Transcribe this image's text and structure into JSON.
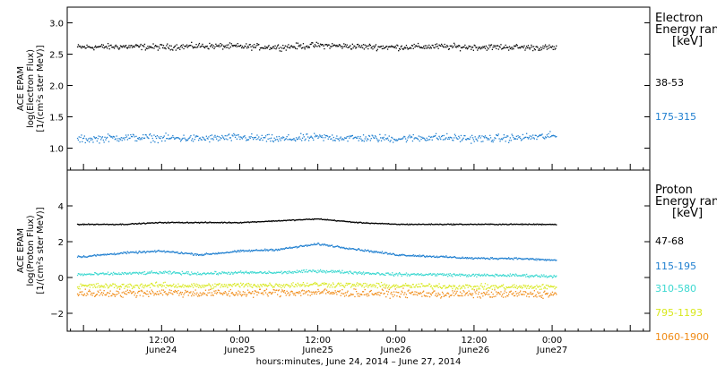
{
  "chart_data": [
    {
      "type": "scatter",
      "ylabel_lines": [
        "ACE EPAM",
        "log(Electron Flux)",
        "[1/(cm²s ster MeV)]"
      ],
      "ylim": [
        0.65,
        3.25
      ],
      "yticks": [
        1.0,
        1.5,
        2.0,
        2.5,
        3.0
      ],
      "ytick_labels": [
        "1.0",
        "1.5",
        "2.0",
        "2.5",
        "3.0"
      ],
      "legend_title": [
        "Electron",
        "Energy ranges",
        "[keV]"
      ],
      "series": [
        {
          "name": "38-53",
          "color": "#000000",
          "x": [
            0,
            6,
            12,
            18,
            24,
            30,
            36,
            42,
            48,
            54,
            60,
            66,
            72
          ],
          "y": [
            2.62,
            2.63,
            2.62,
            2.64,
            2.63,
            2.62,
            2.65,
            2.63,
            2.62,
            2.63,
            2.62,
            2.62,
            2.61
          ],
          "spread": 0.07
        },
        {
          "name": "175-315",
          "color": "#1f7fd0",
          "x": [
            0,
            6,
            12,
            18,
            24,
            30,
            36,
            42,
            48,
            54,
            60,
            66,
            72
          ],
          "y": [
            1.15,
            1.18,
            1.17,
            1.16,
            1.18,
            1.15,
            1.18,
            1.17,
            1.16,
            1.18,
            1.16,
            1.17,
            1.2
          ],
          "spread": 0.09
        }
      ]
    },
    {
      "type": "scatter",
      "ylabel_lines": [
        "ACE EPAM",
        "log(Proton Flux)",
        "[1/(cm²s ster MeV)]"
      ],
      "ylim": [
        -3.0,
        6.0
      ],
      "yticks": [
        -2,
        0,
        2,
        4
      ],
      "ytick_labels": [
        "−2",
        "0",
        "2",
        "4"
      ],
      "legend_title": [
        "Proton",
        "Energy ranges",
        "[keV]"
      ],
      "series": [
        {
          "name": "47-68",
          "color": "#000000",
          "x": [
            0,
            6,
            12,
            18,
            24,
            30,
            36,
            42,
            48,
            54,
            60,
            66,
            72
          ],
          "y": [
            3.0,
            3.0,
            3.1,
            3.1,
            3.1,
            3.2,
            3.3,
            3.1,
            3.0,
            3.0,
            3.0,
            3.0,
            3.0
          ],
          "spread": 0.04
        },
        {
          "name": "115-195",
          "color": "#1f7fd0",
          "x": [
            0,
            6,
            12,
            18,
            24,
            30,
            36,
            42,
            48,
            54,
            60,
            66,
            72
          ],
          "y": [
            1.2,
            1.4,
            1.5,
            1.3,
            1.5,
            1.6,
            1.9,
            1.6,
            1.3,
            1.2,
            1.1,
            1.1,
            1.0
          ],
          "spread": 0.08
        },
        {
          "name": "310-580",
          "color": "#3ad8d0",
          "x": [
            0,
            6,
            12,
            18,
            24,
            30,
            36,
            42,
            48,
            54,
            60,
            66,
            72
          ],
          "y": [
            0.2,
            0.25,
            0.3,
            0.25,
            0.3,
            0.3,
            0.4,
            0.3,
            0.2,
            0.2,
            0.15,
            0.15,
            0.1
          ],
          "spread": 0.12
        },
        {
          "name": "795-1193",
          "color": "#d8e81c",
          "x": [
            0,
            6,
            12,
            18,
            24,
            30,
            36,
            42,
            48,
            54,
            60,
            66,
            72
          ],
          "y": [
            -0.45,
            -0.45,
            -0.4,
            -0.45,
            -0.4,
            -0.4,
            -0.35,
            -0.4,
            -0.45,
            -0.45,
            -0.5,
            -0.5,
            -0.5
          ],
          "spread": 0.22
        },
        {
          "name": "1060-1900",
          "color": "#f08a14",
          "x": [
            0,
            6,
            12,
            18,
            24,
            30,
            36,
            42,
            48,
            54,
            60,
            66,
            72
          ],
          "y": [
            -0.85,
            -0.85,
            -0.8,
            -0.85,
            -0.85,
            -0.8,
            -0.8,
            -0.85,
            -0.85,
            -0.9,
            -0.9,
            -0.9,
            -0.9
          ],
          "spread": 0.32
        }
      ]
    }
  ],
  "x_axis": {
    "xlim_hours": [
      -2.5,
      87
    ],
    "ticks": [
      {
        "h": 12,
        "time": "12:00",
        "date": "June24"
      },
      {
        "h": 24,
        "time": "0:00",
        "date": "June25"
      },
      {
        "h": 36,
        "time": "12:00",
        "date": "June25"
      },
      {
        "h": 48,
        "time": "0:00",
        "date": "June26"
      },
      {
        "h": 60,
        "time": "12:00",
        "date": "June26"
      },
      {
        "h": 72,
        "time": "0:00",
        "date": "June27"
      }
    ],
    "xlabel": "hours:minutes, June 24, 2014 – June 27, 2014"
  }
}
